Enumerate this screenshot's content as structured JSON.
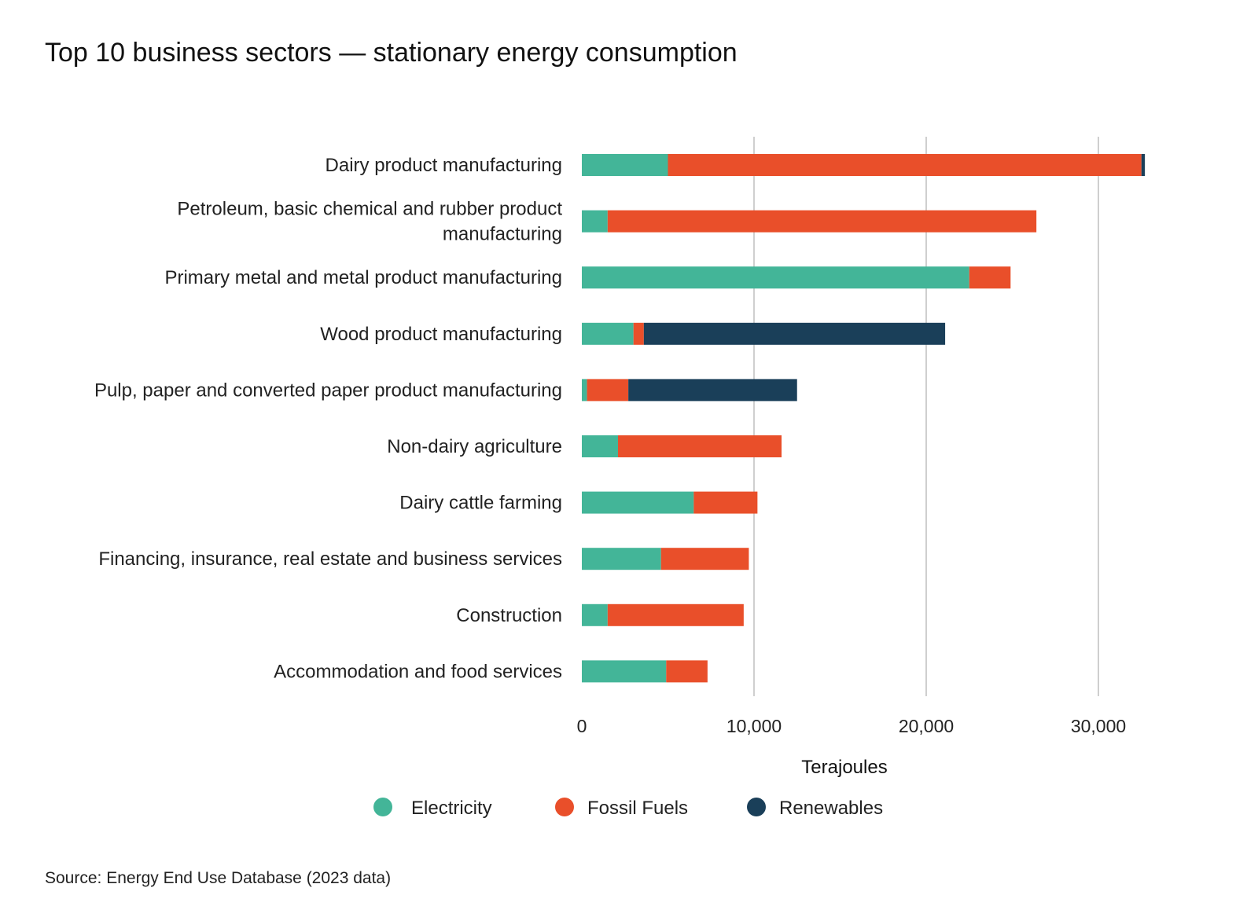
{
  "chart_data": {
    "type": "bar",
    "orientation": "horizontal",
    "stacked": true,
    "title": "Top 10 business sectors — stationary energy consumption",
    "xlabel": "Terajoules",
    "ylabel": "",
    "xlim": [
      0,
      33000
    ],
    "xticks": [
      0,
      10000,
      20000,
      30000
    ],
    "xtick_labels": [
      "0",
      "10,000",
      "20,000",
      "30,000"
    ],
    "grid": "vertical",
    "legend_position": "bottom",
    "categories": [
      [
        "Dairy product manufacturing"
      ],
      [
        "Petroleum, basic chemical and rubber product",
        "manufacturing"
      ],
      [
        "Primary metal and metal product manufacturing"
      ],
      [
        "Wood product manufacturing"
      ],
      [
        "Pulp, paper and converted paper product manufacturing"
      ],
      [
        "Non-dairy agriculture"
      ],
      [
        "Dairy cattle farming"
      ],
      [
        "Financing, insurance, real estate and business services"
      ],
      [
        "Construction"
      ],
      [
        "Accommodation and food services"
      ]
    ],
    "series": [
      {
        "name": "Electricity",
        "color": "#43b598",
        "values": [
          5000,
          1500,
          22500,
          3000,
          300,
          2100,
          6500,
          4600,
          1500,
          4900
        ]
      },
      {
        "name": "Fossil Fuels",
        "color": "#e94f2a",
        "values": [
          27500,
          24900,
          2400,
          600,
          2400,
          9500,
          3700,
          5100,
          7900,
          2400
        ]
      },
      {
        "name": "Renewables",
        "color": "#1a3f59",
        "values": [
          200,
          0,
          0,
          17500,
          9800,
          0,
          0,
          0,
          0,
          0
        ]
      }
    ]
  },
  "source": "Source: Energy End Use Database (2023 data)"
}
